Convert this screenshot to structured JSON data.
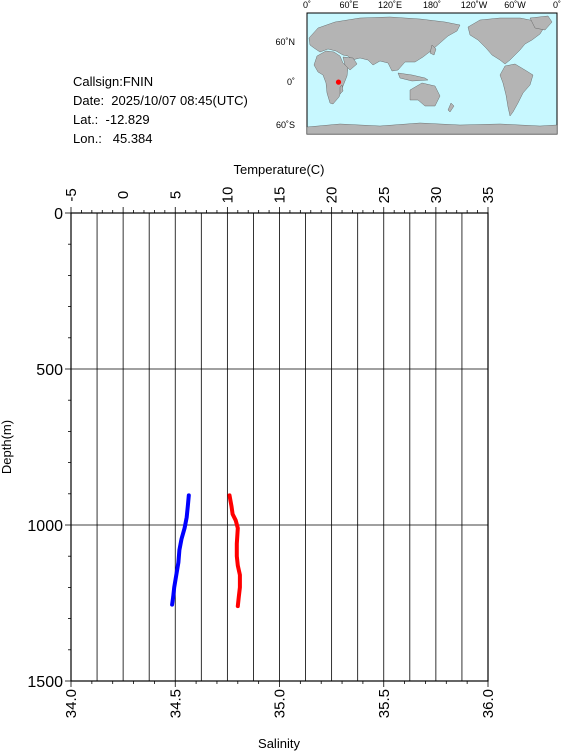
{
  "station": {
    "callsign": "Callsign:FNIN",
    "date": "Date:  2025/10/07 08:45(UTC)",
    "lat": "Lat.:  -12.829",
    "lon": "Lon.:   45.384"
  },
  "map": {
    "top_labels": [
      "0˚",
      "60˚E",
      "120˚E",
      "180˚",
      "120˚W",
      "60˚W",
      "0˚"
    ],
    "lat_labels": [
      "60˚N",
      "0˚",
      "60˚S"
    ],
    "ocean_color": "#c8f8ff",
    "land_color": "#b4b4b4",
    "marker_color": "#ff0000",
    "station_lon": 45.384,
    "station_lat": -12.829
  },
  "chart_data": {
    "type": "line",
    "title": "",
    "top_axis": {
      "label": "Temperature(C)",
      "range": [
        -5,
        35
      ],
      "ticks": [
        -5,
        0,
        5,
        10,
        15,
        20,
        25,
        30,
        35
      ]
    },
    "bottom_axis": {
      "label": "Salinity",
      "range": [
        34.0,
        36.0
      ],
      "ticks": [
        "34.0",
        "34.5",
        "35.0",
        "35.5",
        "36.0"
      ]
    },
    "y_axis": {
      "label": "Depth(m)",
      "range": [
        0,
        1500
      ],
      "inverted": true,
      "ticks": [
        0,
        500,
        1000,
        1500
      ]
    },
    "grid": true,
    "series": [
      {
        "name": "Temperature",
        "axis": "top",
        "color": "#0000ff",
        "points": [
          [
            6.3,
            905
          ],
          [
            6.2,
            940
          ],
          [
            6.1,
            975
          ],
          [
            5.9,
            1010
          ],
          [
            5.6,
            1045
          ],
          [
            5.4,
            1080
          ],
          [
            5.3,
            1120
          ],
          [
            5.1,
            1160
          ],
          [
            4.9,
            1200
          ],
          [
            4.8,
            1230
          ],
          [
            4.7,
            1255
          ]
        ]
      },
      {
        "name": "Salinity",
        "axis": "bottom",
        "color": "#ff0000",
        "points": [
          [
            34.76,
            905
          ],
          [
            34.77,
            940
          ],
          [
            34.775,
            965
          ],
          [
            34.79,
            985
          ],
          [
            34.8,
            1010
          ],
          [
            34.795,
            1060
          ],
          [
            34.795,
            1100
          ],
          [
            34.8,
            1130
          ],
          [
            34.81,
            1160
          ],
          [
            34.81,
            1200
          ],
          [
            34.805,
            1230
          ],
          [
            34.8,
            1260
          ]
        ]
      }
    ]
  }
}
